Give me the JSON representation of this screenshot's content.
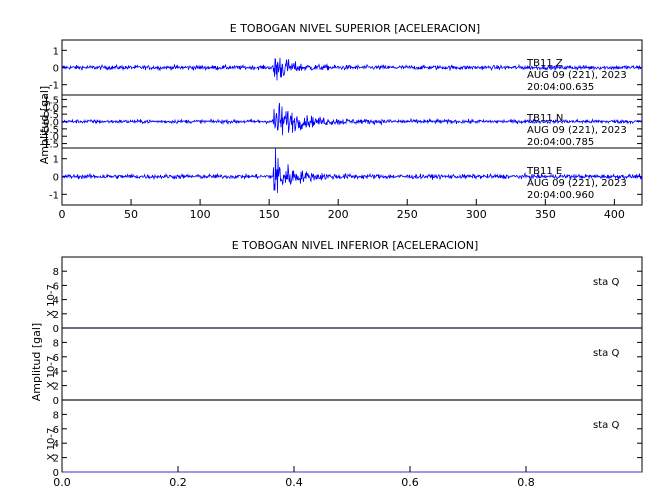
{
  "chart_data": [
    {
      "type": "line",
      "title": "E TOBOGAN NIVEL SUPERIOR [ACELERACION]",
      "ylabel": "Amplitud [gal]",
      "xlim": [
        0,
        420
      ],
      "x_ticks": [
        "0",
        "50",
        "100",
        "150",
        "200",
        "250",
        "300",
        "350",
        "400"
      ],
      "event_onset_x": 153,
      "series_color": "#0000ff",
      "traces": [
        {
          "station": "TB11",
          "component": "Z",
          "date": "AUG 09 (221), 2023",
          "time": "20:04:00.635",
          "y_ticks": [
            "1",
            "0",
            "-1"
          ],
          "ylim": [
            -1.6,
            1.6
          ],
          "noise_amplitude": 0.12,
          "event_peak": 1.1,
          "decay": 0.055
        },
        {
          "station": "TB11",
          "component": "N",
          "date": "AUG 09 (221), 2023",
          "time": "20:04:00.785",
          "y_ticks": [
            "1.5",
            "1.0",
            "0.5",
            "0.0",
            "-0.5",
            "-1.0",
            "-1.5"
          ],
          "ylim": [
            -1.8,
            1.8
          ],
          "noise_amplitude": 0.12,
          "event_peak": 1.3,
          "decay": 0.03
        },
        {
          "station": "TB11",
          "component": "E",
          "date": "AUG 09 (221), 2023",
          "time": "20:04:00.960",
          "y_ticks": [
            "1",
            "0",
            "-1"
          ],
          "ylim": [
            -1.6,
            1.6
          ],
          "noise_amplitude": 0.12,
          "event_peak": 1.4,
          "decay": 0.045
        }
      ]
    },
    {
      "type": "line",
      "title": "E TOBOGAN NIVEL INFERIOR [ACELERACION]",
      "ylabel": "Amplitud [gal]",
      "xlim": [
        0,
        1
      ],
      "x_ticks": [
        "0.0",
        "0.2",
        "0.4",
        "0.6",
        "0.8"
      ],
      "series_color": "#6a5acd",
      "scale_label": "X 10-7",
      "traces": [
        {
          "station": "sta",
          "component": "Q",
          "y_ticks": [
            "8",
            "6",
            "4",
            "2",
            "0"
          ],
          "ylim": [
            0,
            10
          ],
          "values": [
            0,
            0
          ]
        },
        {
          "station": "sta",
          "component": "Q",
          "y_ticks": [
            "8",
            "6",
            "4",
            "2",
            "0"
          ],
          "ylim": [
            0,
            10
          ],
          "values": [
            0,
            0
          ]
        },
        {
          "station": "sta",
          "component": "Q",
          "y_ticks": [
            "8",
            "6",
            "4",
            "2",
            "0"
          ],
          "ylim": [
            0,
            10
          ],
          "values": [
            0,
            0
          ]
        }
      ]
    }
  ]
}
